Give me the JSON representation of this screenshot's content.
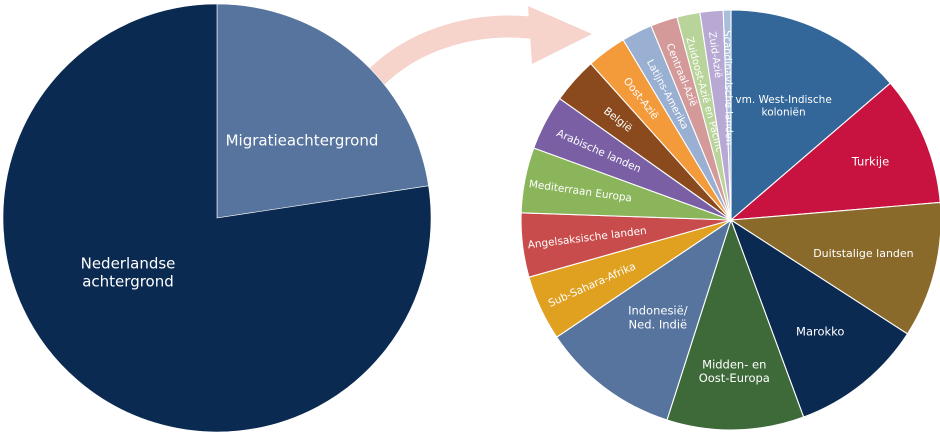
{
  "chart_data": [
    {
      "type": "pie",
      "title": "",
      "slices": [
        {
          "label": "Migratieachtergrond",
          "value": 22.6,
          "color": "#56749d"
        },
        {
          "label": "Nederlandse achtergrond",
          "value": 77.4,
          "color": "#0b2a51"
        }
      ]
    },
    {
      "type": "pie",
      "title": "",
      "slices": [
        {
          "label": "vm. West-Indische koloniën",
          "value": 13.9,
          "color": "#336699"
        },
        {
          "label": "Turkije",
          "value": 10.1,
          "color": "#c8123f"
        },
        {
          "label": "Duitstalige landen",
          "value": 10.6,
          "color": "#8a6a2a"
        },
        {
          "label": "Marokko",
          "value": 10.4,
          "color": "#0b2a51"
        },
        {
          "label": "Midden- en Oost-Europa",
          "value": 10.7,
          "color": "#3e6a3a"
        },
        {
          "label": "Indonesië/ Ned. Indië",
          "value": 10.8,
          "color": "#56749d"
        },
        {
          "label": "Sub-Sahara-Afrika",
          "value": 5.1,
          "color": "#e0a020"
        },
        {
          "label": "Angelsaksische landen",
          "value": 5.0,
          "color": "#c94c4c"
        },
        {
          "label": "Mediterraan Europa",
          "value": 5.1,
          "color": "#8bb55b"
        },
        {
          "label": "Arabische landen",
          "value": 4.3,
          "color": "#7a5fa5"
        },
        {
          "label": "België",
          "value": 3.6,
          "color": "#8a4a1e"
        },
        {
          "label": "Oost-Azië",
          "value": 3.1,
          "color": "#f39a3b"
        },
        {
          "label": "Latijns-Amerika",
          "value": 2.4,
          "color": "#9ab0d2"
        },
        {
          "label": "Centraal-Azië",
          "value": 2.1,
          "color": "#d49a9a"
        },
        {
          "label": "Zuidoost-Azië en Pacific",
          "value": 1.8,
          "color": "#b8d49a"
        },
        {
          "label": "Zuid-Azië",
          "value": 1.8,
          "color": "#b8a8d4"
        },
        {
          "label": "Scandinavische landen",
          "value": 0.6,
          "color": "#a9bedb"
        }
      ]
    }
  ],
  "colors": {
    "arrow": "#f6d3cb",
    "separator": "#ffffff",
    "label_text": "#ffffff"
  }
}
